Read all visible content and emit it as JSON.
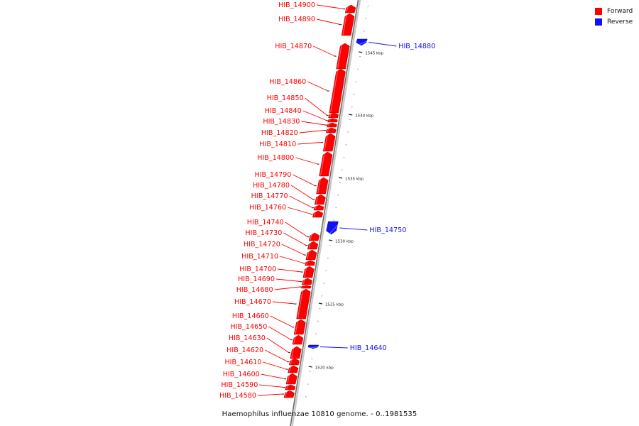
{
  "legend": [
    {
      "label": "Forward",
      "color": "#ff0000"
    },
    {
      "label": "Reverse",
      "color": "#1010ff"
    }
  ],
  "caption": "Haemophilus influenzae 10810 genome. - 0..1981535",
  "colors": {
    "forward": "#ff0000",
    "reverse": "#1010ff",
    "axis": "#9a9a9a"
  },
  "scale_labels": [
    "1545 kbp",
    "1540 kbp",
    "1535 kbp",
    "1530 kbp",
    "1525 kbp",
    "1520 kbp"
  ],
  "genes": [
    {
      "name": "HIB_14900",
      "strand": "forward"
    },
    {
      "name": "HIB_14890",
      "strand": "forward"
    },
    {
      "name": "HIB_14880",
      "strand": "reverse"
    },
    {
      "name": "HIB_14870",
      "strand": "forward"
    },
    {
      "name": "HIB_14860",
      "strand": "forward"
    },
    {
      "name": "HIB_14850",
      "strand": "forward"
    },
    {
      "name": "HIB_14840",
      "strand": "forward"
    },
    {
      "name": "HIB_14830",
      "strand": "forward"
    },
    {
      "name": "HIB_14820",
      "strand": "forward"
    },
    {
      "name": "HIB_14810",
      "strand": "forward"
    },
    {
      "name": "HIB_14800",
      "strand": "forward"
    },
    {
      "name": "HIB_14790",
      "strand": "forward"
    },
    {
      "name": "HIB_14780",
      "strand": "forward"
    },
    {
      "name": "HIB_14770",
      "strand": "forward"
    },
    {
      "name": "HIB_14760",
      "strand": "forward"
    },
    {
      "name": "HIB_14750",
      "strand": "reverse"
    },
    {
      "name": "HIB_14740",
      "strand": "forward"
    },
    {
      "name": "HIB_14730",
      "strand": "forward"
    },
    {
      "name": "HIB_14720",
      "strand": "forward"
    },
    {
      "name": "HIB_14710",
      "strand": "forward"
    },
    {
      "name": "HIB_14700",
      "strand": "forward"
    },
    {
      "name": "HIB_14690",
      "strand": "forward"
    },
    {
      "name": "HIB_14680",
      "strand": "forward"
    },
    {
      "name": "HIB_14670",
      "strand": "forward"
    },
    {
      "name": "HIB_14660",
      "strand": "forward"
    },
    {
      "name": "HIB_14650",
      "strand": "forward"
    },
    {
      "name": "HIB_14640",
      "strand": "reverse"
    },
    {
      "name": "HIB_14630",
      "strand": "forward"
    },
    {
      "name": "HIB_14620",
      "strand": "forward"
    },
    {
      "name": "HIB_14610",
      "strand": "forward"
    },
    {
      "name": "HIB_14600",
      "strand": "forward"
    },
    {
      "name": "HIB_14590",
      "strand": "forward"
    },
    {
      "name": "HIB_14580",
      "strand": "forward"
    }
  ]
}
